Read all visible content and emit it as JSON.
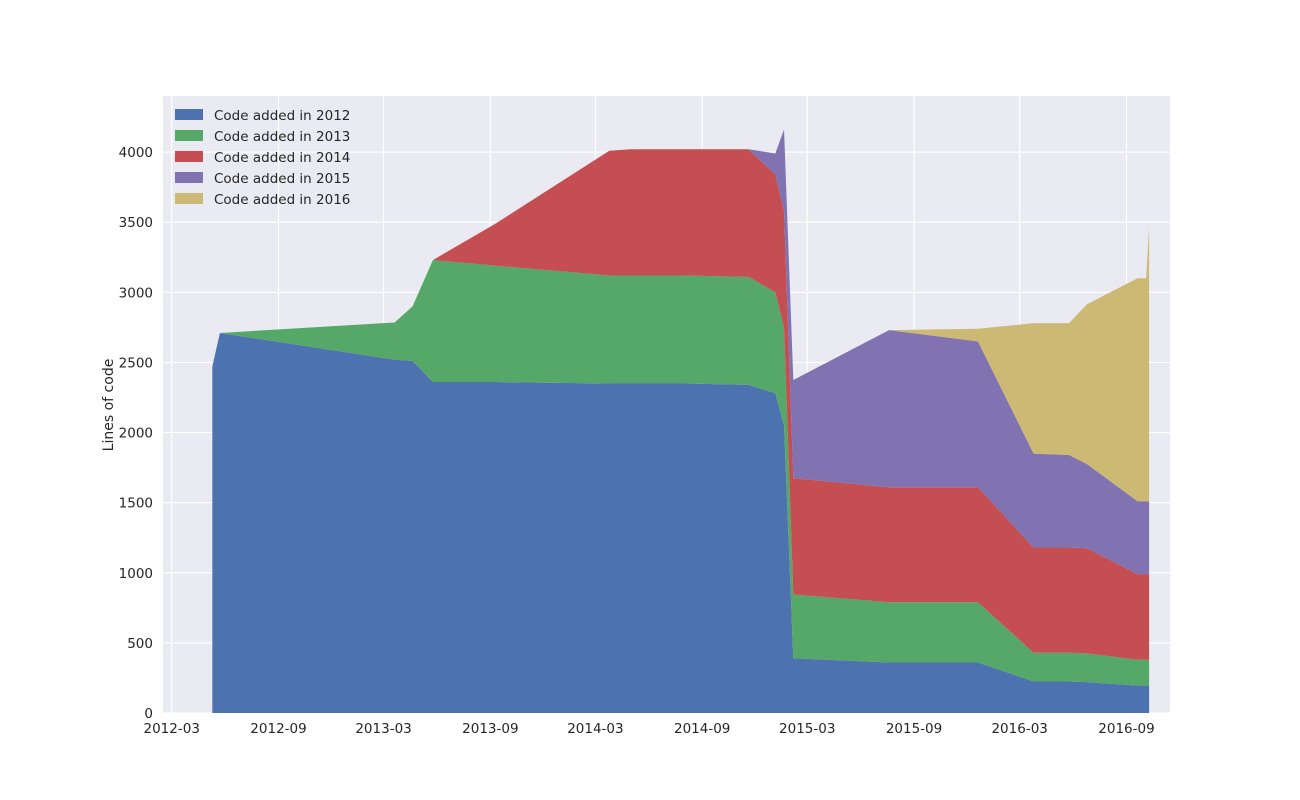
{
  "chart_data": {
    "type": "area",
    "stacked": true,
    "title": "",
    "xlabel": "",
    "ylabel": "Lines of code",
    "ylim": [
      0,
      4400
    ],
    "xlim": [
      "2012-02-15",
      "2016-11-15"
    ],
    "grid": true,
    "legend_position": "top-left",
    "x_ticks": [
      "2012-03",
      "2012-09",
      "2013-03",
      "2013-09",
      "2014-03",
      "2014-09",
      "2015-03",
      "2015-09",
      "2016-03",
      "2016-09"
    ],
    "y_ticks": [
      0,
      500,
      1000,
      1500,
      2000,
      2500,
      3000,
      3500,
      4000
    ],
    "x": [
      "2012-05-10",
      "2012-05-23",
      "2013-03-20",
      "2013-04-20",
      "2013-05-25",
      "2013-09-10",
      "2014-03-25",
      "2014-05-01",
      "2014-08-01",
      "2014-11-20",
      "2015-01-05",
      "2015-01-20",
      "2015-02-05",
      "2015-07-20",
      "2015-12-20",
      "2016-03-25",
      "2016-05-25",
      "2016-06-25",
      "2016-09-20",
      "2016-10-05",
      "2016-10-10"
    ],
    "series": [
      {
        "name": "Code added in 2012",
        "color": "#4C72B0",
        "values": [
          2470,
          2710,
          2520,
          2510,
          2360,
          2360,
          2350,
          2350,
          2350,
          2340,
          2280,
          2050,
          390,
          360,
          360,
          225,
          225,
          220,
          195,
          195,
          195
        ]
      },
      {
        "name": "Code added in 2013",
        "color": "#55A868",
        "values": [
          0,
          0,
          265,
          390,
          870,
          830,
          770,
          770,
          770,
          770,
          720,
          700,
          455,
          430,
          430,
          205,
          205,
          205,
          185,
          185,
          185
        ]
      },
      {
        "name": "Code added in 2014",
        "color": "#C44E52",
        "values": [
          0,
          0,
          0,
          0,
          0,
          300,
          890,
          900,
          900,
          910,
          840,
          830,
          830,
          820,
          820,
          750,
          750,
          750,
          610,
          610,
          610
        ]
      },
      {
        "name": "Code added in 2015",
        "color": "#8172B2",
        "values": [
          0,
          0,
          0,
          0,
          0,
          0,
          0,
          0,
          0,
          0,
          150,
          580,
          700,
          1120,
          1040,
          670,
          660,
          600,
          520,
          520,
          520
        ]
      },
      {
        "name": "Code added in 2016",
        "color": "#CCB974",
        "values": [
          0,
          0,
          0,
          0,
          0,
          0,
          0,
          0,
          0,
          0,
          0,
          0,
          0,
          0,
          90,
          930,
          940,
          1140,
          1590,
          1590,
          1960
        ]
      }
    ]
  }
}
